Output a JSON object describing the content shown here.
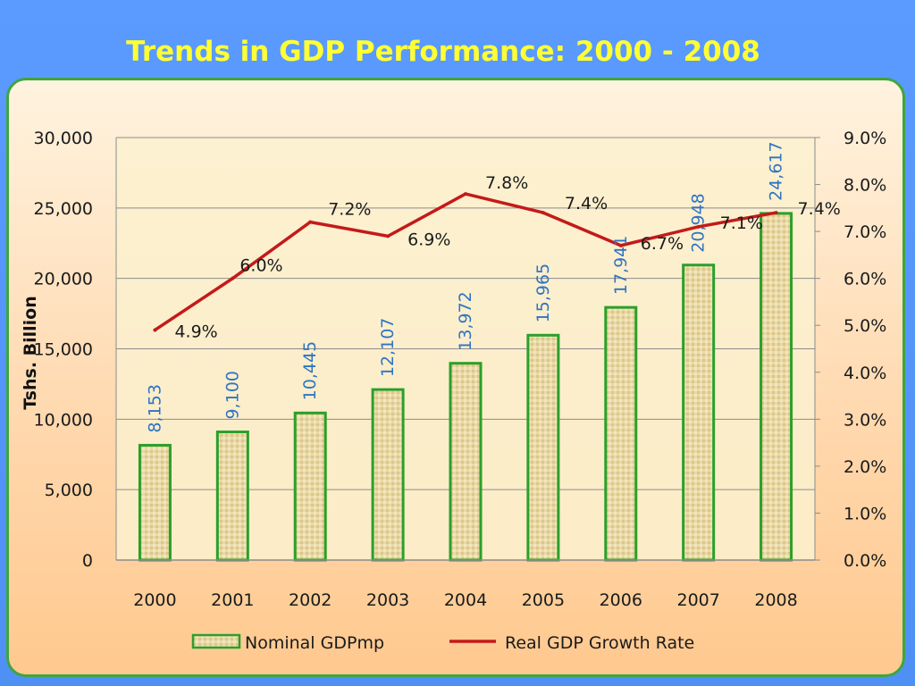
{
  "slide": {
    "title": "Trends in GDP Performance: 2000 - 2008"
  },
  "chart_data": {
    "type": "bar",
    "categories": [
      "2000",
      "2001",
      "2002",
      "2003",
      "2004",
      "2005",
      "2006",
      "2007",
      "2008"
    ],
    "series": [
      {
        "name": "Nominal GDPmp",
        "type": "bar",
        "axis": "left",
        "values": [
          8153,
          9100,
          10445,
          12107,
          13972,
          15965,
          17941,
          20948,
          24617
        ],
        "labels": [
          "8,153",
          "9,100",
          "10,445",
          "12,107",
          "13,972",
          "15,965",
          "17,941",
          "20,948",
          "24,617"
        ],
        "color": "#2aa02a",
        "fill": "#ead9a6"
      },
      {
        "name": "Real GDP Growth Rate",
        "type": "line",
        "axis": "right",
        "values": [
          4.9,
          6.0,
          7.2,
          6.9,
          7.8,
          7.4,
          6.7,
          7.1,
          7.4
        ],
        "labels": [
          "4.9%",
          "6.0%",
          "7.2%",
          "6.9%",
          "7.8%",
          "7.4%",
          "6.7%",
          "7.1%",
          "7.4%"
        ],
        "color": "#c41a1a"
      }
    ],
    "ylabel": "Tshs. Billion",
    "xlabel": "",
    "ylim": [
      0,
      30000
    ],
    "y_ticks": [
      "0",
      "5,000",
      "10,000",
      "15,000",
      "20,000",
      "25,000",
      "30,000"
    ],
    "y2lim": [
      0,
      9
    ],
    "y2_ticks": [
      "0.0%",
      "1.0%",
      "2.0%",
      "3.0%",
      "4.0%",
      "5.0%",
      "6.0%",
      "7.0%",
      "8.0%",
      "9.0%"
    ],
    "grid": true,
    "legend": "bottom"
  }
}
